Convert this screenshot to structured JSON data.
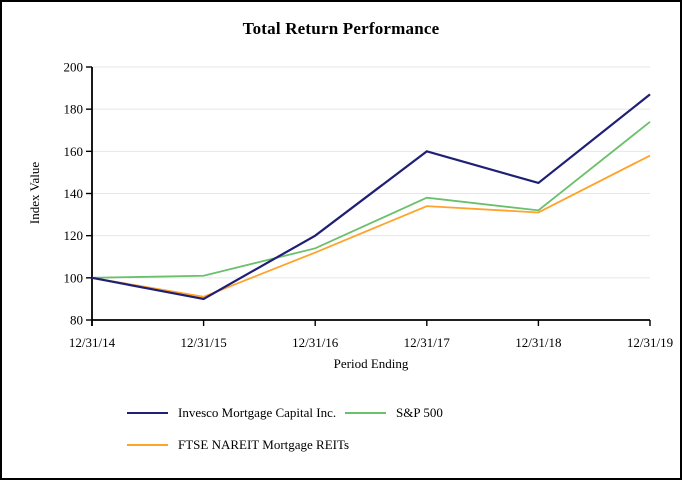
{
  "frame": {
    "background": "#ffffff",
    "border_color": "#000000"
  },
  "chart_data": {
    "type": "line",
    "title": "Total Return Performance",
    "xlabel": "Period Ending",
    "ylabel": "Index Value",
    "categories": [
      "12/31/14",
      "12/31/15",
      "12/31/16",
      "12/31/17",
      "12/31/18",
      "12/31/19"
    ],
    "y_ticks": [
      80,
      100,
      120,
      140,
      160,
      180,
      200
    ],
    "ylim": [
      80,
      200
    ],
    "grid": "horizontal",
    "grid_color": "#e7e7e7",
    "axis_color": "#000000",
    "legend_position": "below-left, two rows",
    "series": [
      {
        "name": "Invesco Mortgage Capital Inc.",
        "color": "#1f1f75",
        "values": [
          100,
          90,
          120,
          160,
          145,
          187
        ]
      },
      {
        "name": "S&P 500",
        "color": "#6bc06b",
        "values": [
          100,
          101,
          114,
          138,
          132,
          174
        ]
      },
      {
        "name": "FTSE NAREIT Mortgage REITs",
        "color": "#ffa32b",
        "values": [
          100,
          91,
          112,
          134,
          131,
          158
        ]
      }
    ]
  }
}
